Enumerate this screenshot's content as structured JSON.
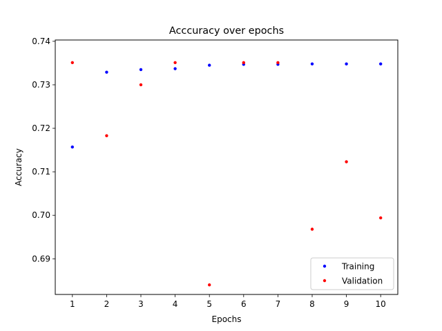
{
  "chart_data": {
    "type": "scatter",
    "title": "Acccuracy over epochs",
    "xlabel": "Epochs",
    "ylabel": "Accuracy",
    "xlim": [
      0.5,
      10.5
    ],
    "ylim": [
      0.6818,
      0.7403
    ],
    "xticks": [
      1,
      2,
      3,
      4,
      5,
      6,
      7,
      8,
      9,
      10
    ],
    "yticks": [
      0.69,
      0.7,
      0.71,
      0.72,
      0.73,
      0.74
    ],
    "ytick_labels": [
      "0.69",
      "0.70",
      "0.71",
      "0.72",
      "0.73",
      "0.74"
    ],
    "grid": false,
    "legend_position": "lower-right",
    "series": [
      {
        "name": "Training",
        "color": "#0000ff",
        "x": [
          1,
          2,
          3,
          4,
          5,
          6,
          7,
          8,
          9,
          10
        ],
        "y": [
          0.7157,
          0.7329,
          0.7335,
          0.7337,
          0.7345,
          0.7347,
          0.7347,
          0.7348,
          0.7348,
          0.7348
        ]
      },
      {
        "name": "Validation",
        "color": "#ff0000",
        "x": [
          1,
          2,
          3,
          4,
          5,
          6,
          7,
          8,
          9,
          10
        ],
        "y": [
          0.7351,
          0.7183,
          0.73,
          0.7351,
          0.684,
          0.7351,
          0.7351,
          0.6968,
          0.7123,
          0.6994
        ]
      }
    ]
  }
}
